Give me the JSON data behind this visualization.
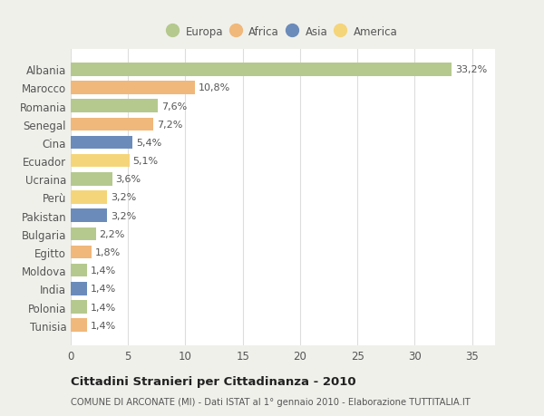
{
  "categories": [
    "Albania",
    "Marocco",
    "Romania",
    "Senegal",
    "Cina",
    "Ecuador",
    "Ucraina",
    "Perù",
    "Pakistan",
    "Bulgaria",
    "Egitto",
    "Moldova",
    "India",
    "Polonia",
    "Tunisia"
  ],
  "values": [
    33.2,
    10.8,
    7.6,
    7.2,
    5.4,
    5.1,
    3.6,
    3.2,
    3.2,
    2.2,
    1.8,
    1.4,
    1.4,
    1.4,
    1.4
  ],
  "labels": [
    "33,2%",
    "10,8%",
    "7,6%",
    "7,2%",
    "5,4%",
    "5,1%",
    "3,6%",
    "3,2%",
    "3,2%",
    "2,2%",
    "1,8%",
    "1,4%",
    "1,4%",
    "1,4%",
    "1,4%"
  ],
  "continents": [
    "Europa",
    "Africa",
    "Europa",
    "Africa",
    "Asia",
    "America",
    "Europa",
    "America",
    "Asia",
    "Europa",
    "Africa",
    "Europa",
    "Asia",
    "Europa",
    "Africa"
  ],
  "colors": {
    "Europa": "#b5c98e",
    "Africa": "#f0b87a",
    "Asia": "#6b8cba",
    "America": "#f5d57a"
  },
  "legend_order": [
    "Europa",
    "Africa",
    "Asia",
    "America"
  ],
  "title": "Cittadini Stranieri per Cittadinanza - 2010",
  "subtitle": "COMUNE DI ARCONATE (MI) - Dati ISTAT al 1° gennaio 2010 - Elaborazione TUTTITALIA.IT",
  "xlim": [
    0,
    37
  ],
  "xticks": [
    0,
    5,
    10,
    15,
    20,
    25,
    30,
    35
  ],
  "bg_color": "#f0f0eb",
  "plot_bg_color": "#ffffff"
}
